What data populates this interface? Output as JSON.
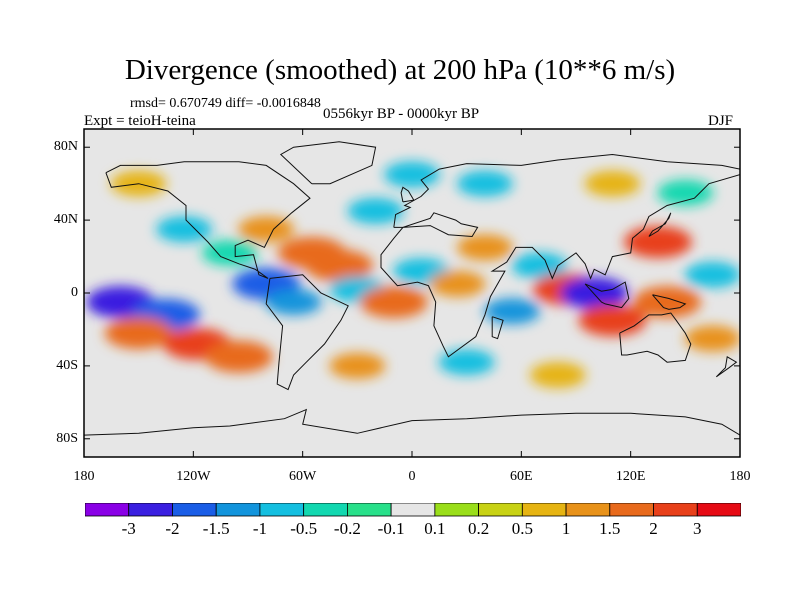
{
  "title": "Divergence (smoothed) at 200 hPa (10**6 m/s)",
  "stats": "rmsd= 0.670749  diff= -0.0016848",
  "experiment": "Expt = teioH-teina",
  "period": "0556kyr BP - 0000kyr BP",
  "season": "DJF",
  "map": {
    "lat_range": [
      -90,
      90
    ],
    "lon_range": [
      -180,
      180
    ],
    "lat_ticks": [
      {
        "value": 80,
        "label": "80N"
      },
      {
        "value": 40,
        "label": "40N"
      },
      {
        "value": 0,
        "label": "0"
      },
      {
        "value": -40,
        "label": "40S"
      },
      {
        "value": -80,
        "label": "80S"
      }
    ],
    "lon_ticks": [
      {
        "value": -180,
        "label": "180"
      },
      {
        "value": -120,
        "label": "120W"
      },
      {
        "value": -60,
        "label": "60W"
      },
      {
        "value": 0,
        "label": "0"
      },
      {
        "value": 60,
        "label": "60E"
      },
      {
        "value": 120,
        "label": "120E"
      },
      {
        "value": 180,
        "label": "180"
      }
    ],
    "features": [
      {
        "lon": -160,
        "lat": -5,
        "value": -2.5
      },
      {
        "lon": -135,
        "lat": -12,
        "value": -2.0
      },
      {
        "lon": -150,
        "lat": -22,
        "value": 1.8
      },
      {
        "lon": -118,
        "lat": -28,
        "value": 2.0
      },
      {
        "lon": -95,
        "lat": -35,
        "value": 1.5
      },
      {
        "lon": -100,
        "lat": 22,
        "value": -0.5
      },
      {
        "lon": -125,
        "lat": 35,
        "value": -1.0
      },
      {
        "lon": -80,
        "lat": 35,
        "value": 1.0
      },
      {
        "lon": -80,
        "lat": 5,
        "value": -2.0
      },
      {
        "lon": -65,
        "lat": -5,
        "value": -1.2
      },
      {
        "lon": -55,
        "lat": 22,
        "value": 1.5
      },
      {
        "lon": -40,
        "lat": 15,
        "value": 1.8
      },
      {
        "lon": -30,
        "lat": 2,
        "value": -1.0
      },
      {
        "lon": -10,
        "lat": -5,
        "value": 1.5
      },
      {
        "lon": 5,
        "lat": 12,
        "value": -0.8
      },
      {
        "lon": 25,
        "lat": 5,
        "value": 1.0
      },
      {
        "lon": 40,
        "lat": 25,
        "value": 1.2
      },
      {
        "lon": 55,
        "lat": -10,
        "value": -1.2
      },
      {
        "lon": 70,
        "lat": 15,
        "value": -1.0
      },
      {
        "lon": 85,
        "lat": 2,
        "value": 2.0
      },
      {
        "lon": 100,
        "lat": 0,
        "value": -3.0
      },
      {
        "lon": 110,
        "lat": -15,
        "value": 2.5
      },
      {
        "lon": 135,
        "lat": 28,
        "value": 2.0
      },
      {
        "lon": 140,
        "lat": -5,
        "value": 1.5
      },
      {
        "lon": 165,
        "lat": 10,
        "value": -1.0
      },
      {
        "lon": 165,
        "lat": -25,
        "value": 1.0
      },
      {
        "lon": -30,
        "lat": -40,
        "value": 1.0
      },
      {
        "lon": 30,
        "lat": -38,
        "value": -0.8
      },
      {
        "lon": 80,
        "lat": -45,
        "value": 0.5
      },
      {
        "lon": -20,
        "lat": 45,
        "value": -1.0
      },
      {
        "lon": 0,
        "lat": 65,
        "value": -0.6
      },
      {
        "lon": -150,
        "lat": 60,
        "value": 0.8
      },
      {
        "lon": 40,
        "lat": 60,
        "value": -0.6
      },
      {
        "lon": 110,
        "lat": 60,
        "value": 0.5
      },
      {
        "lon": 150,
        "lat": 55,
        "value": -0.5
      }
    ]
  },
  "colorbar": {
    "levels": [
      "-3",
      "-2",
      "-1.5",
      "-1",
      "-0.5",
      "-0.2",
      "-0.1",
      "0.1",
      "0.2",
      "0.5",
      "1",
      "1.5",
      "2",
      "3"
    ],
    "colors": [
      "#8a00e6",
      "#3a1fe0",
      "#1a5de6",
      "#1294dc",
      "#14bfe0",
      "#12d8b0",
      "#28e08a",
      "#e6e6e6",
      "#9ade1a",
      "#c8d214",
      "#e6b412",
      "#e8921a",
      "#e86a1c",
      "#e8401a",
      "#e60a14"
    ]
  }
}
